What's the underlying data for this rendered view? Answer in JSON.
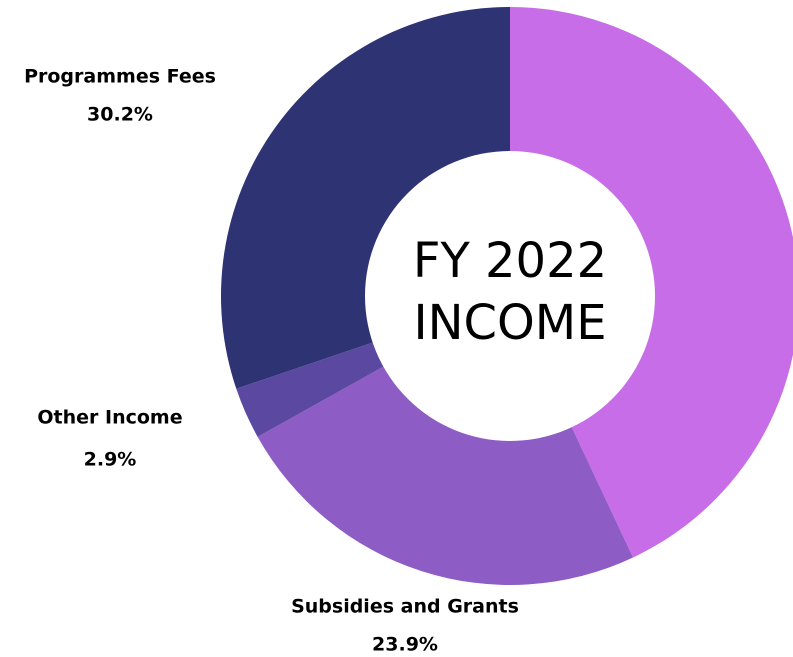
{
  "chart_data": {
    "type": "donut",
    "title_lines": [
      "FY 2022",
      "INCOME"
    ],
    "categories": [
      null,
      "Subsidies and Grants",
      "Other Income",
      "Programmes Fees"
    ],
    "values": [
      43.0,
      23.9,
      2.9,
      30.2
    ],
    "value_labels": [
      null,
      "23.9%",
      "2.9%",
      "30.2%"
    ],
    "colors": [
      "#c76de7",
      "#8d5cc5",
      "#5b48a0",
      "#2e3373"
    ]
  }
}
